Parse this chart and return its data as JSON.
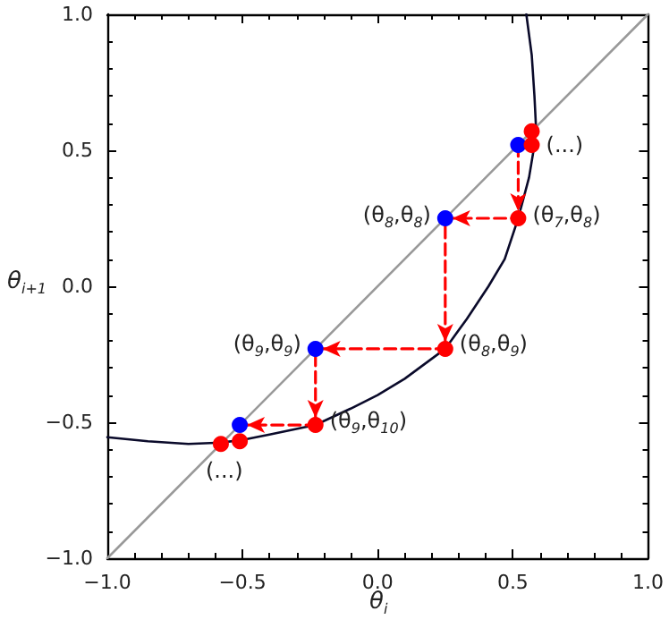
{
  "chart_data": {
    "type": "line",
    "xlabel": "θ$_{i}$",
    "ylabel": "θ$_{i+1}$",
    "xlim": [
      -1,
      1
    ],
    "ylim": [
      -1,
      1
    ],
    "xticks": [
      {
        "value": -1,
        "label": "−1.0"
      },
      {
        "value": -0.5,
        "label": "−0.5"
      },
      {
        "value": 0,
        "label": "0.0"
      },
      {
        "value": 0.5,
        "label": "0.5"
      },
      {
        "value": 1,
        "label": "1.0"
      }
    ],
    "yticks": [
      {
        "value": -1,
        "label": "−1.0"
      },
      {
        "value": -0.5,
        "label": "−0.5"
      },
      {
        "value": 0,
        "label": "0.0"
      },
      {
        "value": 0.5,
        "label": "0.5"
      },
      {
        "value": 1,
        "label": "1.0"
      }
    ],
    "grid": false,
    "marker": "none",
    "series": [
      {
        "color": "#999999",
        "x": [
          -1,
          1
        ],
        "values": [
          -1,
          1
        ]
      },
      {
        "color": "#0a0a2a",
        "x": [
          -1,
          -0.85,
          -0.7,
          -0.58,
          -0.5,
          -0.4,
          -0.23,
          -0.1,
          0.0,
          0.1,
          0.25,
          0.33,
          0.41,
          0.47,
          0.52,
          0.56,
          0.58,
          0.585,
          0.58,
          0.57,
          0.55
        ],
        "values": [
          -0.555,
          -0.57,
          -0.58,
          -0.575,
          -0.565,
          -0.545,
          -0.51,
          -0.45,
          -0.4,
          -0.34,
          -0.23,
          -0.12,
          0.0,
          0.1,
          0.25,
          0.4,
          0.52,
          0.6,
          0.7,
          0.85,
          1.0
        ]
      },
      {
        "color": "#ff0000",
        "line_style": "dashed",
        "x": [
          0.52,
          0.52,
          0.25,
          0.25,
          -0.23,
          -0.23,
          -0.51
        ],
        "values": [
          0.52,
          0.25,
          0.25,
          -0.23,
          -0.23,
          -0.51,
          -0.51
        ]
      },
      {
        "type": "scatter",
        "color": "#0000ff",
        "marker": "circle",
        "x": [
          0.52,
          0.25,
          -0.23,
          -0.51
        ],
        "values": [
          0.52,
          0.25,
          -0.23,
          -0.51
        ]
      },
      {
        "type": "scatter",
        "color": "#ff0000",
        "marker": "circle",
        "x": [
          0.57,
          0.57,
          0.52,
          0.25,
          -0.23,
          -0.51,
          -0.58
        ],
        "values": [
          0.57,
          0.52,
          0.25,
          -0.23,
          -0.51,
          -0.57,
          -0.58
        ]
      }
    ],
    "annotations": [
      {
        "text": "(...)",
        "x": 0.57,
        "y": 0.52
      },
      {
        "text": "(θ$_{8}$,θ$_{8}$)",
        "x": 0.25,
        "y": 0.25
      },
      {
        "text": "(θ$_{7}$,θ$_{8}$)",
        "x": 0.52,
        "y": 0.25
      },
      {
        "text": "(θ$_{8}$,θ$_{9}$)",
        "x": 0.25,
        "y": -0.23
      },
      {
        "text": "(θ$_{9}$,θ$_{9}$)",
        "x": -0.23,
        "y": -0.23
      },
      {
        "text": "(θ$_{9}$,θ$_{10}$)",
        "x": -0.23,
        "y": -0.51
      },
      {
        "text": "(...)",
        "x": -0.58,
        "y": -0.58
      }
    ]
  }
}
